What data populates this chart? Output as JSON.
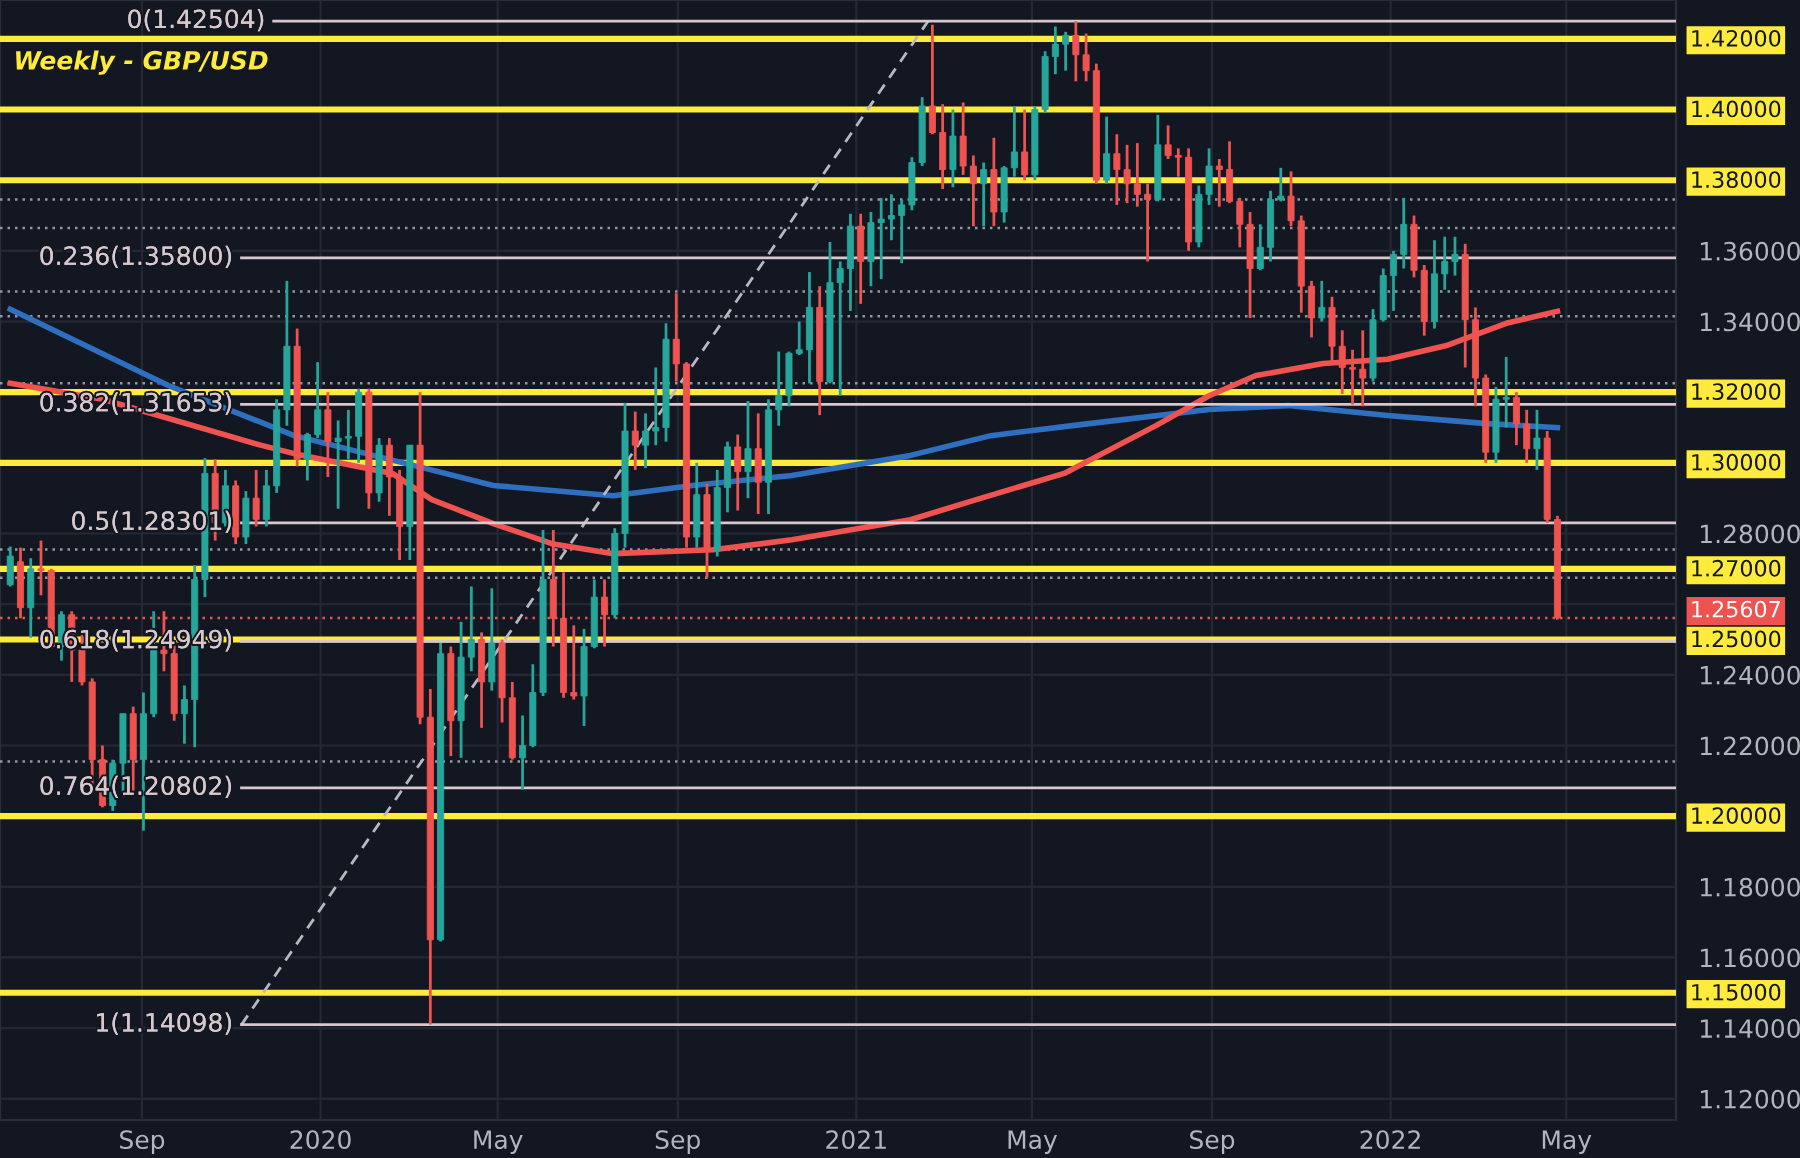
{
  "chart_data": {
    "type": "candlestick",
    "title": "Weekly - GBP/USD",
    "x": [
      "2019-06-03",
      "2019-06-10",
      "2019-06-17",
      "2019-06-24",
      "2019-07-01",
      "2019-07-08",
      "2019-07-15",
      "2019-07-22",
      "2019-07-29",
      "2019-08-05",
      "2019-08-12",
      "2019-08-19",
      "2019-08-26",
      "2019-09-02",
      "2019-09-09",
      "2019-09-16",
      "2019-09-23",
      "2019-09-30",
      "2019-10-07",
      "2019-10-14",
      "2019-10-21",
      "2019-10-28",
      "2019-11-04",
      "2019-11-11",
      "2019-11-18",
      "2019-11-25",
      "2019-12-02",
      "2019-12-09",
      "2019-12-16",
      "2019-12-23",
      "2019-12-30",
      "2020-01-06",
      "2020-01-13",
      "2020-01-20",
      "2020-01-27",
      "2020-02-03",
      "2020-02-10",
      "2020-02-17",
      "2020-02-24",
      "2020-03-02",
      "2020-03-09",
      "2020-03-16",
      "2020-03-23",
      "2020-03-30",
      "2020-04-06",
      "2020-04-13",
      "2020-04-20",
      "2020-04-27",
      "2020-05-04",
      "2020-05-11",
      "2020-05-18",
      "2020-05-25",
      "2020-06-01",
      "2020-06-08",
      "2020-06-15",
      "2020-06-22",
      "2020-06-29",
      "2020-07-06",
      "2020-07-13",
      "2020-07-20",
      "2020-07-27",
      "2020-08-03",
      "2020-08-10",
      "2020-08-17",
      "2020-08-24",
      "2020-08-31",
      "2020-09-07",
      "2020-09-14",
      "2020-09-21",
      "2020-09-28",
      "2020-10-05",
      "2020-10-12",
      "2020-10-19",
      "2020-10-26",
      "2020-11-02",
      "2020-11-09",
      "2020-11-16",
      "2020-11-23",
      "2020-11-30",
      "2020-12-07",
      "2020-12-14",
      "2020-12-21",
      "2020-12-28",
      "2021-01-04",
      "2021-01-11",
      "2021-01-18",
      "2021-01-25",
      "2021-02-01",
      "2021-02-08",
      "2021-02-15",
      "2021-02-22",
      "2021-03-01",
      "2021-03-08",
      "2021-03-15",
      "2021-03-22",
      "2021-03-29",
      "2021-04-05",
      "2021-04-12",
      "2021-04-19",
      "2021-04-26",
      "2021-05-03",
      "2021-05-10",
      "2021-05-17",
      "2021-05-24",
      "2021-05-31",
      "2021-06-07",
      "2021-06-14",
      "2021-06-21",
      "2021-06-28",
      "2021-07-05",
      "2021-07-12",
      "2021-07-19",
      "2021-07-26",
      "2021-08-02",
      "2021-08-09",
      "2021-08-16",
      "2021-08-23",
      "2021-08-30",
      "2021-09-06",
      "2021-09-13",
      "2021-09-20",
      "2021-09-27",
      "2021-10-04",
      "2021-10-11",
      "2021-10-18",
      "2021-10-25",
      "2021-11-01",
      "2021-11-08",
      "2021-11-15",
      "2021-11-22",
      "2021-11-29",
      "2021-12-06",
      "2021-12-13",
      "2021-12-20",
      "2021-12-27",
      "2022-01-03",
      "2022-01-10",
      "2022-01-17",
      "2022-01-24",
      "2022-01-31",
      "2022-02-07",
      "2022-02-14",
      "2022-02-21",
      "2022-02-28",
      "2022-03-07",
      "2022-03-14",
      "2022-03-21",
      "2022-03-28",
      "2022-04-04",
      "2022-04-11",
      "2022-04-18",
      "2022-04-25"
    ],
    "ohlc": [
      [
        1.2655,
        1.2763,
        1.265,
        1.2736
      ],
      [
        1.272,
        1.276,
        1.256,
        1.259
      ],
      [
        1.259,
        1.273,
        1.2505,
        1.27
      ],
      [
        1.27,
        1.278,
        1.2625,
        1.2695
      ],
      [
        1.2695,
        1.27,
        1.2475,
        1.248
      ],
      [
        1.248,
        1.258,
        1.244,
        1.257
      ],
      [
        1.257,
        1.258,
        1.238,
        1.247
      ],
      [
        1.247,
        1.252,
        1.237,
        1.238
      ],
      [
        1.238,
        1.239,
        1.208,
        1.216
      ],
      [
        1.216,
        1.22,
        1.2025,
        1.203
      ],
      [
        1.203,
        1.216,
        1.2015,
        1.215
      ],
      [
        1.215,
        1.229,
        1.207,
        1.229
      ],
      [
        1.229,
        1.231,
        1.207,
        1.216
      ],
      [
        1.216,
        1.235,
        1.1959,
        1.229
      ],
      [
        1.229,
        1.258,
        1.228,
        1.247
      ],
      [
        1.247,
        1.258,
        1.241,
        1.246
      ],
      [
        1.246,
        1.249,
        1.227,
        1.229
      ],
      [
        1.229,
        1.237,
        1.2205,
        1.233
      ],
      [
        1.233,
        1.271,
        1.2195,
        1.267
      ],
      [
        1.267,
        1.3013,
        1.262,
        1.297
      ],
      [
        1.297,
        1.301,
        1.278,
        1.283
      ],
      [
        1.283,
        1.298,
        1.282,
        1.2935
      ],
      [
        1.2935,
        1.295,
        1.277,
        1.279
      ],
      [
        1.279,
        1.292,
        1.277,
        1.29
      ],
      [
        1.29,
        1.298,
        1.282,
        1.284
      ],
      [
        1.284,
        1.298,
        1.282,
        1.2935
      ],
      [
        1.2935,
        1.318,
        1.2915,
        1.315
      ],
      [
        1.315,
        1.3515,
        1.3105,
        1.333
      ],
      [
        1.333,
        1.338,
        1.299,
        1.301
      ],
      [
        1.301,
        1.3085,
        1.295,
        1.308
      ],
      [
        1.308,
        1.3285,
        1.307,
        1.315
      ],
      [
        1.315,
        1.32,
        1.296,
        1.306
      ],
      [
        1.306,
        1.312,
        1.287,
        1.307
      ],
      [
        1.307,
        1.315,
        1.301,
        1.3075
      ],
      [
        1.3075,
        1.321,
        1.3,
        1.32
      ],
      [
        1.32,
        1.321,
        1.287,
        1.2915
      ],
      [
        1.2915,
        1.307,
        1.289,
        1.305
      ],
      [
        1.305,
        1.307,
        1.285,
        1.296
      ],
      [
        1.296,
        1.298,
        1.2725,
        1.282
      ],
      [
        1.282,
        1.305,
        1.2725,
        1.305
      ],
      [
        1.305,
        1.32,
        1.226,
        1.228
      ],
      [
        1.228,
        1.236,
        1.141,
        1.165
      ],
      [
        1.165,
        1.249,
        1.1645,
        1.246
      ],
      [
        1.246,
        1.248,
        1.217,
        1.227
      ],
      [
        1.227,
        1.255,
        1.2165,
        1.245
      ],
      [
        1.245,
        1.265,
        1.241,
        1.25
      ],
      [
        1.25,
        1.252,
        1.225,
        1.238
      ],
      [
        1.238,
        1.2645,
        1.2355,
        1.249
      ],
      [
        1.249,
        1.25,
        1.2265,
        1.2335
      ],
      [
        1.2335,
        1.238,
        1.216,
        1.2165
      ],
      [
        1.2165,
        1.2285,
        1.2075,
        1.22
      ],
      [
        1.22,
        1.243,
        1.2195,
        1.235
      ],
      [
        1.235,
        1.281,
        1.234,
        1.267
      ],
      [
        1.267,
        1.281,
        1.248,
        1.256
      ],
      [
        1.256,
        1.269,
        1.2335,
        1.235
      ],
      [
        1.235,
        1.254,
        1.233,
        1.234
      ],
      [
        1.234,
        1.253,
        1.2255,
        1.248
      ],
      [
        1.248,
        1.267,
        1.2475,
        1.262
      ],
      [
        1.262,
        1.267,
        1.248,
        1.257
      ],
      [
        1.257,
        1.2815,
        1.256,
        1.28
      ],
      [
        1.28,
        1.317,
        1.276,
        1.309
      ],
      [
        1.309,
        1.3145,
        1.298,
        1.305
      ],
      [
        1.305,
        1.314,
        1.2985,
        1.309
      ],
      [
        1.309,
        1.327,
        1.305,
        1.31
      ],
      [
        1.31,
        1.3395,
        1.306,
        1.335
      ],
      [
        1.335,
        1.348,
        1.323,
        1.328
      ],
      [
        1.328,
        1.3285,
        1.276,
        1.279
      ],
      [
        1.279,
        1.3,
        1.276,
        1.291
      ],
      [
        1.291,
        1.294,
        1.2675,
        1.275
      ],
      [
        1.275,
        1.298,
        1.2735,
        1.293
      ],
      [
        1.293,
        1.306,
        1.286,
        1.3045
      ],
      [
        1.3045,
        1.308,
        1.2865,
        1.2975
      ],
      [
        1.2975,
        1.3175,
        1.29,
        1.304
      ],
      [
        1.304,
        1.314,
        1.2855,
        1.2945
      ],
      [
        1.2945,
        1.318,
        1.2855,
        1.315
      ],
      [
        1.315,
        1.3315,
        1.3105,
        1.319
      ],
      [
        1.319,
        1.3315,
        1.316,
        1.331
      ],
      [
        1.331,
        1.34,
        1.3305,
        1.332
      ],
      [
        1.332,
        1.354,
        1.3225,
        1.344
      ],
      [
        1.344,
        1.35,
        1.3135,
        1.323
      ],
      [
        1.323,
        1.3625,
        1.3225,
        1.351
      ],
      [
        1.351,
        1.357,
        1.319,
        1.355
      ],
      [
        1.355,
        1.3705,
        1.343,
        1.367
      ],
      [
        1.367,
        1.3705,
        1.345,
        1.357
      ],
      [
        1.357,
        1.371,
        1.35,
        1.368
      ],
      [
        1.368,
        1.375,
        1.352,
        1.369
      ],
      [
        1.369,
        1.376,
        1.363,
        1.37
      ],
      [
        1.37,
        1.3745,
        1.3565,
        1.373
      ],
      [
        1.373,
        1.3865,
        1.3715,
        1.385
      ],
      [
        1.385,
        1.4035,
        1.384,
        1.401
      ],
      [
        1.401,
        1.424,
        1.393,
        1.3935
      ],
      [
        1.3935,
        1.4015,
        1.3775,
        1.383
      ],
      [
        1.383,
        1.4,
        1.378,
        1.3925
      ],
      [
        1.3925,
        1.402,
        1.3815,
        1.384
      ],
      [
        1.384,
        1.387,
        1.367,
        1.379
      ],
      [
        1.379,
        1.385,
        1.367,
        1.383
      ],
      [
        1.383,
        1.392,
        1.367,
        1.371
      ],
      [
        1.371,
        1.384,
        1.368,
        1.3835
      ],
      [
        1.3835,
        1.401,
        1.381,
        1.388
      ],
      [
        1.388,
        1.4,
        1.38,
        1.3815
      ],
      [
        1.3815,
        1.401,
        1.38,
        1.4
      ],
      [
        1.4,
        1.4165,
        1.399,
        1.415
      ],
      [
        1.415,
        1.4235,
        1.41,
        1.4185
      ],
      [
        1.4185,
        1.422,
        1.411,
        1.421
      ],
      [
        1.421,
        1.425,
        1.408,
        1.4155
      ],
      [
        1.4155,
        1.4215,
        1.408,
        1.411
      ],
      [
        1.411,
        1.413,
        1.379,
        1.38
      ],
      [
        1.38,
        1.398,
        1.379,
        1.3875
      ],
      [
        1.3875,
        1.393,
        1.373,
        1.383
      ],
      [
        1.383,
        1.39,
        1.3735,
        1.379
      ],
      [
        1.379,
        1.3905,
        1.3725,
        1.376
      ],
      [
        1.376,
        1.379,
        1.357,
        1.3745
      ],
      [
        1.3745,
        1.3985,
        1.374,
        1.39
      ],
      [
        1.39,
        1.3955,
        1.386,
        1.387
      ],
      [
        1.387,
        1.389,
        1.381,
        1.3865
      ],
      [
        1.3865,
        1.389,
        1.36,
        1.3625
      ],
      [
        1.3625,
        1.3785,
        1.361,
        1.376
      ],
      [
        1.376,
        1.389,
        1.373,
        1.384
      ],
      [
        1.384,
        1.386,
        1.3725,
        1.383
      ],
      [
        1.383,
        1.391,
        1.3735,
        1.374
      ],
      [
        1.374,
        1.375,
        1.361,
        1.3675
      ],
      [
        1.3675,
        1.371,
        1.341,
        1.355
      ],
      [
        1.355,
        1.3675,
        1.3545,
        1.361
      ],
      [
        1.361,
        1.377,
        1.357,
        1.3745
      ],
      [
        1.3745,
        1.3835,
        1.374,
        1.3755
      ],
      [
        1.3755,
        1.3825,
        1.367,
        1.3685
      ],
      [
        1.3685,
        1.37,
        1.3425,
        1.35
      ],
      [
        1.35,
        1.3515,
        1.3355,
        1.341
      ],
      [
        1.341,
        1.3515,
        1.34,
        1.344
      ],
      [
        1.344,
        1.347,
        1.328,
        1.333
      ],
      [
        1.333,
        1.3375,
        1.3195,
        1.327
      ],
      [
        1.327,
        1.332,
        1.3165,
        1.3265
      ],
      [
        1.3265,
        1.3375,
        1.316,
        1.324
      ],
      [
        1.324,
        1.3435,
        1.323,
        1.3405
      ],
      [
        1.3405,
        1.355,
        1.34,
        1.353
      ],
      [
        1.353,
        1.36,
        1.343,
        1.359
      ],
      [
        1.359,
        1.375,
        1.355,
        1.3675
      ],
      [
        1.3675,
        1.37,
        1.3525,
        1.3545
      ],
      [
        1.3545,
        1.356,
        1.336,
        1.34
      ],
      [
        1.34,
        1.363,
        1.338,
        1.3535
      ],
      [
        1.3535,
        1.364,
        1.349,
        1.357
      ],
      [
        1.357,
        1.364,
        1.353,
        1.359
      ],
      [
        1.359,
        1.362,
        1.327,
        1.3405
      ],
      [
        1.3405,
        1.344,
        1.316,
        1.324
      ],
      [
        1.324,
        1.325,
        1.3,
        1.303
      ],
      [
        1.303,
        1.3215,
        1.3,
        1.318
      ],
      [
        1.318,
        1.33,
        1.31,
        1.3185
      ],
      [
        1.3185,
        1.32,
        1.305,
        1.311
      ],
      [
        1.311,
        1.315,
        1.3,
        1.304
      ],
      [
        1.304,
        1.315,
        1.298,
        1.307
      ],
      [
        1.307,
        1.309,
        1.283,
        1.284
      ],
      [
        1.284,
        1.285,
        1.2556,
        1.2561
      ]
    ],
    "colors": [
      "#26a69a",
      "#ef5350",
      "#26a69a",
      "#ef5350",
      "#ef5350",
      "#26a69a",
      "#ef5350",
      "#ef5350",
      "#ef5350",
      "#ef5350",
      "#26a69a",
      "#26a69a",
      "#ef5350",
      "#26a69a",
      "#26a69a",
      "#ef5350",
      "#ef5350",
      "#26a69a",
      "#26a69a",
      "#26a69a",
      "#ef5350",
      "#26a69a",
      "#ef5350",
      "#26a69a",
      "#ef5350",
      "#26a69a",
      "#26a69a",
      "#26a69a",
      "#ef5350",
      "#26a69a",
      "#26a69a",
      "#ef5350",
      "#26a69a",
      "#26a69a",
      "#26a69a",
      "#ef5350",
      "#26a69a",
      "#ef5350",
      "#ef5350",
      "#26a69a",
      "#ef5350",
      "#ef5350",
      "#26a69a",
      "#ef5350",
      "#26a69a",
      "#26a69a",
      "#ef5350",
      "#26a69a",
      "#ef5350",
      "#ef5350",
      "#26a69a",
      "#26a69a",
      "#26a69a",
      "#ef5350",
      "#ef5350",
      "#ef5350",
      "#26a69a",
      "#26a69a",
      "#ef5350",
      "#26a69a",
      "#26a69a",
      "#ef5350",
      "#26a69a",
      "#26a69a",
      "#26a69a",
      "#ef5350",
      "#ef5350",
      "#26a69a",
      "#ef5350",
      "#26a69a",
      "#26a69a",
      "#ef5350",
      "#26a69a",
      "#ef5350",
      "#26a69a",
      "#26a69a",
      "#26a69a",
      "#26a69a",
      "#26a69a",
      "#ef5350",
      "#26a69a",
      "#26a69a",
      "#26a69a",
      "#ef5350",
      "#26a69a",
      "#26a69a",
      "#26a69a",
      "#26a69a",
      "#26a69a",
      "#26a69a",
      "#ef5350",
      "#ef5350",
      "#26a69a",
      "#ef5350",
      "#ef5350",
      "#26a69a",
      "#ef5350",
      "#26a69a",
      "#26a69a",
      "#ef5350",
      "#26a69a",
      "#26a69a",
      "#26a69a",
      "#26a69a",
      "#ef5350",
      "#ef5350",
      "#ef5350",
      "#26a69a",
      "#ef5350",
      "#ef5350",
      "#ef5350",
      "#ef5350",
      "#26a69a",
      "#ef5350",
      "#ef5350",
      "#ef5350",
      "#26a69a",
      "#26a69a",
      "#ef5350",
      "#ef5350",
      "#ef5350",
      "#ef5350",
      "#26a69a",
      "#26a69a",
      "#26a69a",
      "#ef5350",
      "#ef5350",
      "#ef5350",
      "#26a69a",
      "#ef5350",
      "#ef5350",
      "#ef5350",
      "#ef5350",
      "#26a69a",
      "#26a69a",
      "#26a69a",
      "#26a69a",
      "#ef5350",
      "#ef5350",
      "#26a69a",
      "#26a69a",
      "#26a69a",
      "#ef5350",
      "#ef5350",
      "#ef5350",
      "#26a69a",
      "#26a69a",
      "#ef5350",
      "#ef5350",
      "#26a69a",
      "#ef5350",
      "#ef5350"
    ],
    "series": [
      {
        "type": "line",
        "color": "#2f6fbf",
        "x": [
          "2019-06-03",
          "2019-09-19",
          "2019-12-14",
          "2020-03-05",
          "2020-04-28",
          "2020-07-19",
          "2020-09-11",
          "2020-11-18",
          "2021-02-07",
          "2021-04-03",
          "2021-06-09",
          "2021-08-30",
          "2021-10-23",
          "2021-12-30",
          "2022-03-08",
          "2022-04-25"
        ],
        "values": [
          1.3435,
          1.3219,
          1.3077,
          1.2992,
          1.2936,
          1.2907,
          1.2936,
          1.2964,
          1.3021,
          1.3077,
          1.3111,
          1.3151,
          1.3162,
          1.3134,
          1.3111,
          1.31
        ]
      },
      {
        "type": "line",
        "color": "#f0524f",
        "x": [
          "2019-06-03",
          "2019-08-05",
          "2019-11-21",
          "2019-12-14",
          "2020-02-19",
          "2020-03-17",
          "2020-04-28",
          "2020-06-07",
          "2020-07-19",
          "2020-09-25",
          "2020-11-18",
          "2021-02-07",
          "2021-03-24",
          "2021-05-23",
          "2021-07-25",
          "2021-08-30",
          "2021-10-01",
          "2021-11-16",
          "2021-12-30",
          "2022-02-09",
          "2022-03-21",
          "2022-04-25"
        ],
        "values": [
          1.3225,
          1.318,
          1.305,
          1.3026,
          1.297,
          1.2896,
          1.2828,
          1.2771,
          1.2743,
          1.2754,
          1.2782,
          1.2839,
          1.2896,
          1.297,
          1.3106,
          1.319,
          1.3247,
          1.3281,
          1.3293,
          1.3333,
          1.3395,
          1.3429
        ]
      },
      {
        "type": "line",
        "color": "#b8b8c0",
        "line_style": "dashed",
        "x": [
          "2019-11-08",
          "2021-02-19"
        ],
        "values": [
          1.141,
          1.425
        ]
      },
      {
        "type": "line",
        "color": "#d8c8cc",
        "name": "0(1.42504)",
        "x": [
          "2019-11-30",
          "2022-07-15"
        ],
        "values": [
          1.42504,
          1.42504
        ]
      },
      {
        "type": "line",
        "color": "#d8c8cc",
        "name": "0.236(1.35800)",
        "x": [
          "2019-11-08",
          "2022-07-15"
        ],
        "values": [
          1.358,
          1.358
        ]
      },
      {
        "type": "line",
        "color": "#d8c8cc",
        "name": "0.382(1.31653)",
        "x": [
          "2019-11-08",
          "2022-07-15"
        ],
        "values": [
          1.31653,
          1.31653
        ]
      },
      {
        "type": "line",
        "color": "#d8c8cc",
        "name": "0.5(1.28301)",
        "x": [
          "2019-11-08",
          "2022-07-15"
        ],
        "values": [
          1.28301,
          1.28301
        ]
      },
      {
        "type": "line",
        "color": "#d8c8cc",
        "name": "0.618(1.24949)",
        "x": [
          "2019-11-08",
          "2022-07-15"
        ],
        "values": [
          1.24949,
          1.24949
        ]
      },
      {
        "type": "line",
        "color": "#d8c8cc",
        "name": "0.764(1.20802)",
        "x": [
          "2019-11-08",
          "2022-07-15"
        ],
        "values": [
          1.20802,
          1.20802
        ]
      },
      {
        "type": "line",
        "color": "#d8c8cc",
        "name": "1(1.14098)",
        "x": [
          "2019-11-08",
          "2022-07-15"
        ],
        "values": [
          1.14098,
          1.14098
        ]
      }
    ],
    "ref_lines": [
      {
        "axis": "y",
        "value": 1.42,
        "label": "1.42000",
        "color": "#ffeb3b",
        "line_style": "solid"
      },
      {
        "axis": "y",
        "value": 1.4,
        "label": "1.40000",
        "color": "#ffeb3b",
        "line_style": "solid"
      },
      {
        "axis": "y",
        "value": 1.38,
        "label": "1.38000",
        "color": "#ffeb3b",
        "line_style": "solid"
      },
      {
        "axis": "y",
        "value": 1.32,
        "label": "1.32000",
        "color": "#ffeb3b",
        "line_style": "solid"
      },
      {
        "axis": "y",
        "value": 1.3,
        "label": "1.30000",
        "color": "#ffeb3b",
        "line_style": "solid"
      },
      {
        "axis": "y",
        "value": 1.27,
        "label": "1.27000",
        "color": "#ffeb3b",
        "line_style": "solid"
      },
      {
        "axis": "y",
        "value": 1.25,
        "label": "1.25000",
        "color": "#ffeb3b",
        "line_style": "solid"
      },
      {
        "axis": "y",
        "value": 1.2,
        "label": "1.20000",
        "color": "#ffeb3b",
        "line_style": "solid"
      },
      {
        "axis": "y",
        "value": 1.15,
        "label": "1.15000",
        "color": "#ffeb3b",
        "line_style": "solid"
      },
      {
        "axis": "y",
        "value": 1.25607,
        "label": "1.25607",
        "color": "#ef5350",
        "line_style": "dotted"
      },
      {
        "axis": "y",
        "value": 1.3745,
        "color": "#9598a1",
        "line_style": "dotted"
      },
      {
        "axis": "y",
        "value": 1.3665,
        "color": "#9598a1",
        "line_style": "dotted"
      },
      {
        "axis": "y",
        "value": 1.3415,
        "color": "#9598a1",
        "line_style": "dotted"
      },
      {
        "axis": "y",
        "value": 1.3485,
        "color": "#9598a1",
        "line_style": "dotted"
      },
      {
        "axis": "y",
        "value": 1.3225,
        "color": "#9598a1",
        "line_style": "dotted"
      },
      {
        "axis": "y",
        "value": 1.2755,
        "color": "#9598a1",
        "line_style": "dotted"
      },
      {
        "axis": "y",
        "value": 1.2675,
        "color": "#9598a1",
        "line_style": "dotted"
      },
      {
        "axis": "y",
        "value": 1.2155,
        "color": "#9598a1",
        "line_style": "dotted"
      }
    ],
    "xlim": [
      "2019-05-27",
      "2022-07-15"
    ],
    "xticks": [
      {
        "value": "2019-09-01",
        "label": "Sep"
      },
      {
        "value": "2020-01-01",
        "label": "2020"
      },
      {
        "value": "2020-05-01",
        "label": "May"
      },
      {
        "value": "2020-09-01",
        "label": "Sep"
      },
      {
        "value": "2021-01-01",
        "label": "2021"
      },
      {
        "value": "2021-05-01",
        "label": "May"
      },
      {
        "value": "2021-09-01",
        "label": "Sep"
      },
      {
        "value": "2022-01-01",
        "label": "2022"
      },
      {
        "value": "2022-05-01",
        "label": "May"
      }
    ],
    "ylim": [
      1.114,
      1.431
    ],
    "yticks": [
      {
        "value": 1.12,
        "label": "1.12000"
      },
      {
        "value": 1.14,
        "label": "1.14000"
      },
      {
        "value": 1.16,
        "label": "1.16000"
      },
      {
        "value": 1.18,
        "label": "1.18000"
      },
      {
        "value": 1.2,
        "label": null
      },
      {
        "value": 1.22,
        "label": "1.22000"
      },
      {
        "value": 1.24,
        "label": "1.24000"
      },
      {
        "value": 1.26,
        "label": null
      },
      {
        "value": 1.28,
        "label": "1.28000"
      },
      {
        "value": 1.3,
        "label": null
      },
      {
        "value": 1.32,
        "label": null
      },
      {
        "value": 1.34,
        "label": "1.34000"
      },
      {
        "value": 1.36,
        "label": "1.36000"
      },
      {
        "value": 1.38,
        "label": null
      },
      {
        "value": 1.4,
        "label": null
      },
      {
        "value": 1.42,
        "label": null
      }
    ],
    "grid": true
  }
}
